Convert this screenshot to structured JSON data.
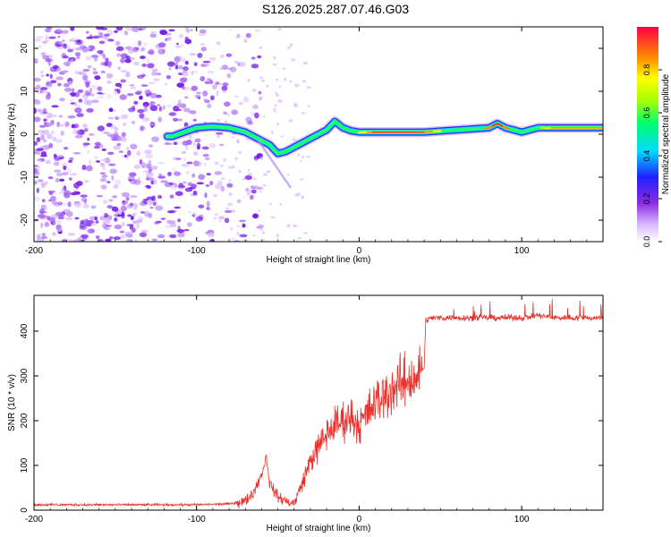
{
  "figure": {
    "title": "S126.2025.287.07.46.G03"
  },
  "chart_data": [
    {
      "type": "heatmap",
      "title": "S126.2025.287.07.46.G03",
      "xlabel": "Height of straight line (km)",
      "ylabel": "Frequency (Hz)",
      "xlim": [
        -200,
        150
      ],
      "ylim": [
        -25,
        25
      ],
      "xticks": [
        -200,
        -100,
        0,
        100
      ],
      "yticks": [
        -20,
        -10,
        0,
        10,
        20
      ],
      "colorbar": {
        "label": "Normalized spectral amplitude",
        "range": [
          0,
          1
        ],
        "ticks": [
          "0.0",
          "0.2",
          "0.4",
          "0.6",
          "0.8"
        ]
      },
      "ridge": {
        "x": [
          -115,
          -100,
          -90,
          -80,
          -70,
          -60,
          -55,
          -50,
          -45,
          -40,
          -30,
          -20,
          -15,
          -10,
          -5,
          0,
          20,
          40,
          60,
          80,
          85,
          90,
          100,
          110,
          130,
          150
        ],
        "freq": [
          -0.5,
          1.5,
          1.8,
          1.5,
          0.5,
          -1.5,
          -2.5,
          -4.5,
          -4.0,
          -3.0,
          -1.0,
          1.0,
          3.0,
          1.5,
          0.8,
          0.5,
          0.5,
          0.5,
          1.0,
          1.5,
          2.5,
          1.5,
          0.5,
          1.5,
          1.5,
          1.5
        ]
      },
      "noise_region_x": [
        -200,
        -90
      ]
    },
    {
      "type": "line",
      "xlabel": "Height of straight line (km)",
      "ylabel": "SNR (10 * v/v)",
      "xlim": [
        -200,
        150
      ],
      "ylim": [
        0,
        480
      ],
      "xticks": [
        -200,
        -100,
        0,
        100
      ],
      "yticks": [
        0,
        100,
        200,
        300,
        400
      ],
      "color": "#e8302a",
      "series": [
        {
          "name": "SNR",
          "x": [
            -200,
            -160,
            -120,
            -100,
            -80,
            -70,
            -65,
            -60,
            -57,
            -55,
            -50,
            -45,
            -40,
            -35,
            -30,
            -25,
            -20,
            -15,
            -10,
            -5,
            0,
            10,
            20,
            30,
            35,
            38,
            40,
            41,
            45,
            60,
            80,
            100,
            110,
            120,
            140,
            150
          ],
          "y": [
            12,
            12,
            12,
            12,
            14,
            20,
            40,
            80,
            120,
            60,
            30,
            20,
            15,
            60,
            110,
            140,
            170,
            190,
            200,
            210,
            190,
            240,
            270,
            290,
            300,
            310,
            320,
            425,
            430,
            430,
            430,
            430,
            435,
            430,
            430,
            430
          ]
        }
      ]
    }
  ]
}
